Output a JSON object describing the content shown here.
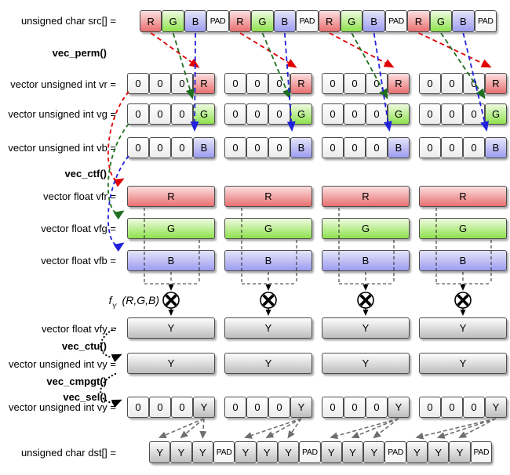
{
  "ops": {
    "perm": "vec_perm()",
    "ctf": "vec_ctf()",
    "ctu": "vec_ctu()",
    "cmpgt": "vec_cmpgt()",
    "sel": "vec_sel()"
  },
  "fy_label": {
    "func": "f",
    "sub": "Y",
    "args": "(R,G,B)"
  },
  "mul_operator": "multiply-circle-x",
  "group_count": 4,
  "rows": {
    "src": {
      "label": "unsigned char src[] =",
      "cells": [
        "R",
        "G",
        "B",
        "PAD",
        "R",
        "G",
        "B",
        "PAD",
        "R",
        "G",
        "B",
        "PAD",
        "R",
        "G",
        "B",
        "PAD"
      ]
    },
    "vr": {
      "label": "vector unsigned int vr =",
      "groups": [
        [
          "0",
          "0",
          "0",
          "R"
        ],
        [
          "0",
          "0",
          "0",
          "R"
        ],
        [
          "0",
          "0",
          "0",
          "R"
        ],
        [
          "0",
          "0",
          "0",
          "R"
        ]
      ]
    },
    "vg": {
      "label": "vector unsigned int vg =",
      "groups": [
        [
          "0",
          "0",
          "0",
          "G"
        ],
        [
          "0",
          "0",
          "0",
          "G"
        ],
        [
          "0",
          "0",
          "0",
          "G"
        ],
        [
          "0",
          "0",
          "0",
          "G"
        ]
      ]
    },
    "vb": {
      "label": "vector unsigned int vb =",
      "groups": [
        [
          "0",
          "0",
          "0",
          "B"
        ],
        [
          "0",
          "0",
          "0",
          "B"
        ],
        [
          "0",
          "0",
          "0",
          "B"
        ],
        [
          "0",
          "0",
          "0",
          "B"
        ]
      ]
    },
    "vfr": {
      "label": "vector float vfr =",
      "bars": [
        "R",
        "R",
        "R",
        "R"
      ]
    },
    "vfg": {
      "label": "vector float vfg =",
      "bars": [
        "G",
        "G",
        "G",
        "G"
      ]
    },
    "vfb": {
      "label": "vector float vfb =",
      "bars": [
        "B",
        "B",
        "B",
        "B"
      ]
    },
    "vfy": {
      "label": "vector float vfy =",
      "bars": [
        "Y",
        "Y",
        "Y",
        "Y"
      ]
    },
    "vy": {
      "label": "vector unsigned int vy =",
      "bars": [
        "Y",
        "Y",
        "Y",
        "Y"
      ]
    },
    "vy2": {
      "label": "vector unsigned int vy =",
      "groups": [
        [
          "0",
          "0",
          "0",
          "Y"
        ],
        [
          "0",
          "0",
          "0",
          "Y"
        ],
        [
          "0",
          "0",
          "0",
          "Y"
        ],
        [
          "0",
          "0",
          "0",
          "Y"
        ]
      ]
    },
    "dst": {
      "label": "unsigned char dst[] =",
      "cells": [
        "Y",
        "Y",
        "Y",
        "PAD",
        "Y",
        "Y",
        "Y",
        "PAD",
        "Y",
        "Y",
        "Y",
        "PAD",
        "Y",
        "Y",
        "Y",
        "PAD"
      ]
    }
  },
  "colors": {
    "red_arrow": "#e00000",
    "green_arrow": "#1e6f1e",
    "blue_arrow": "#2222dd",
    "black_arrow": "#000000",
    "gray_arrow": "#6f6f6f",
    "connector": "#333333",
    "r_gradient_top": "#fbe0e0",
    "r_gradient_bottom": "#e97070",
    "g_gradient_top": "#effbe1",
    "g_gradient_bottom": "#8ee24c",
    "b_gradient_top": "#e4e4fa",
    "b_gradient_bottom": "#9c9cf0",
    "y_gradient_top": "#fdfdfd",
    "y_gradient_bottom": "#bdbdbd"
  }
}
